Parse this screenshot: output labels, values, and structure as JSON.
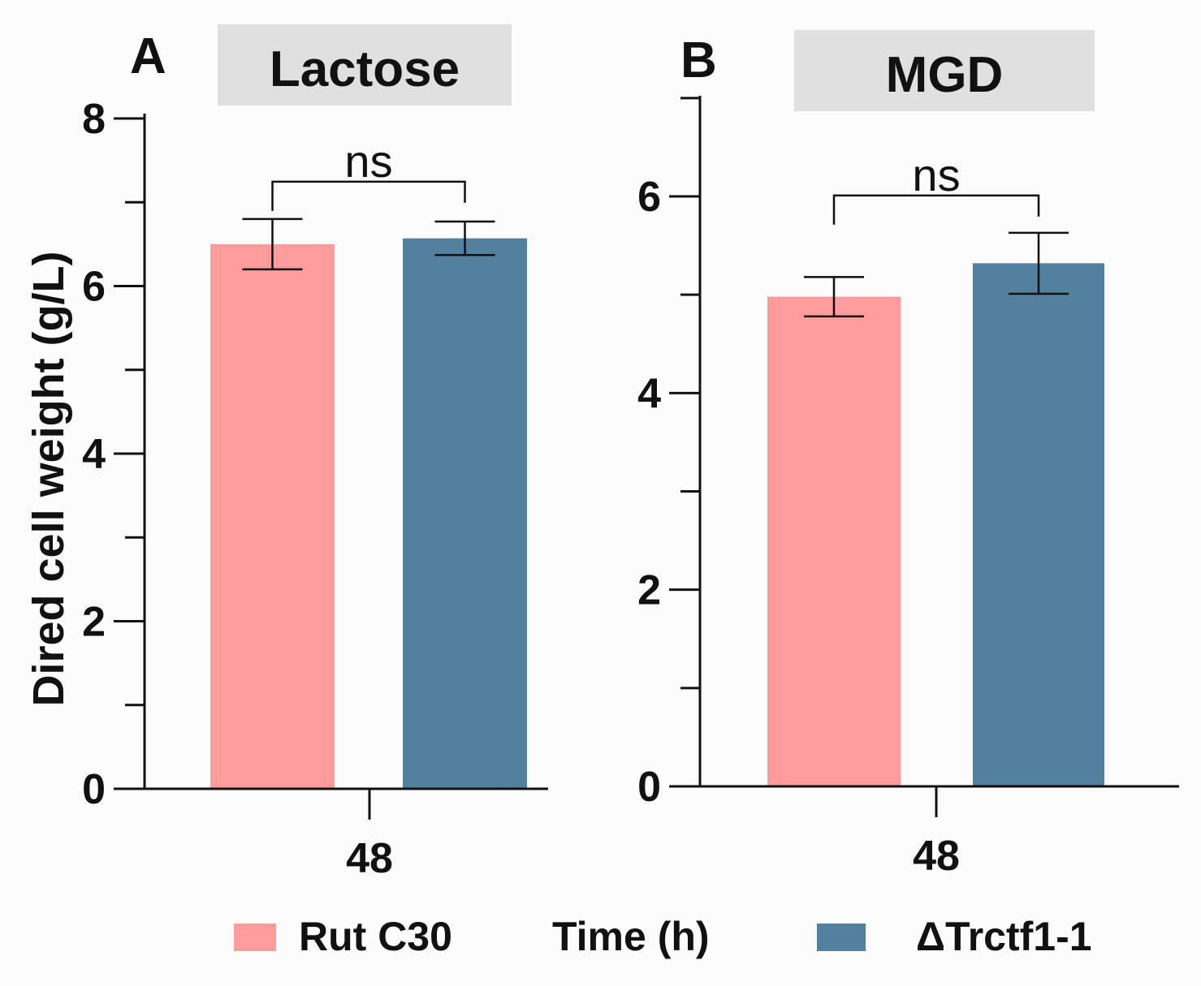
{
  "shared": {
    "ylabel": "Dired cell weight (g/L)",
    "colors": {
      "rut": "#ff9b9b",
      "mut": "#53809e",
      "axis": "#111111",
      "title_bg": "#e0e0e0"
    }
  },
  "legend": {
    "entries": [
      {
        "label": "Rut C30",
        "color": "#ff9b9b"
      },
      {
        "label": "ΔTrctf1-1",
        "color": "#53809e"
      }
    ],
    "xaxis_title": "Time (h)"
  },
  "chart_data": [
    {
      "type": "bar",
      "panel_label": "A",
      "title": "Lactose",
      "categories": [
        "48"
      ],
      "series": [
        {
          "name": "Rut C30",
          "values": [
            6.5
          ],
          "error": [
            0.3
          ]
        },
        {
          "name": "ΔTrctf1-1",
          "values": [
            6.57
          ],
          "error": [
            0.2
          ]
        }
      ],
      "ylim": [
        0,
        8
      ],
      "yticks": [
        0,
        2,
        4,
        6,
        8
      ],
      "yminor_step": 1,
      "significance": "ns",
      "xlabel": "Time (h)",
      "ylabel": "Dired cell weight (g/L)"
    },
    {
      "type": "bar",
      "panel_label": "B",
      "title": "MGD",
      "categories": [
        "48"
      ],
      "series": [
        {
          "name": "Rut C30",
          "values": [
            4.98
          ],
          "error": [
            0.2
          ]
        },
        {
          "name": "ΔTrctf1-1",
          "values": [
            5.32
          ],
          "error": [
            0.31
          ]
        }
      ],
      "ylim": [
        0,
        7
      ],
      "yticks": [
        0,
        2,
        4,
        6
      ],
      "yminor_step": 1,
      "significance": "ns",
      "xlabel": "Time (h)",
      "ylabel": ""
    }
  ]
}
